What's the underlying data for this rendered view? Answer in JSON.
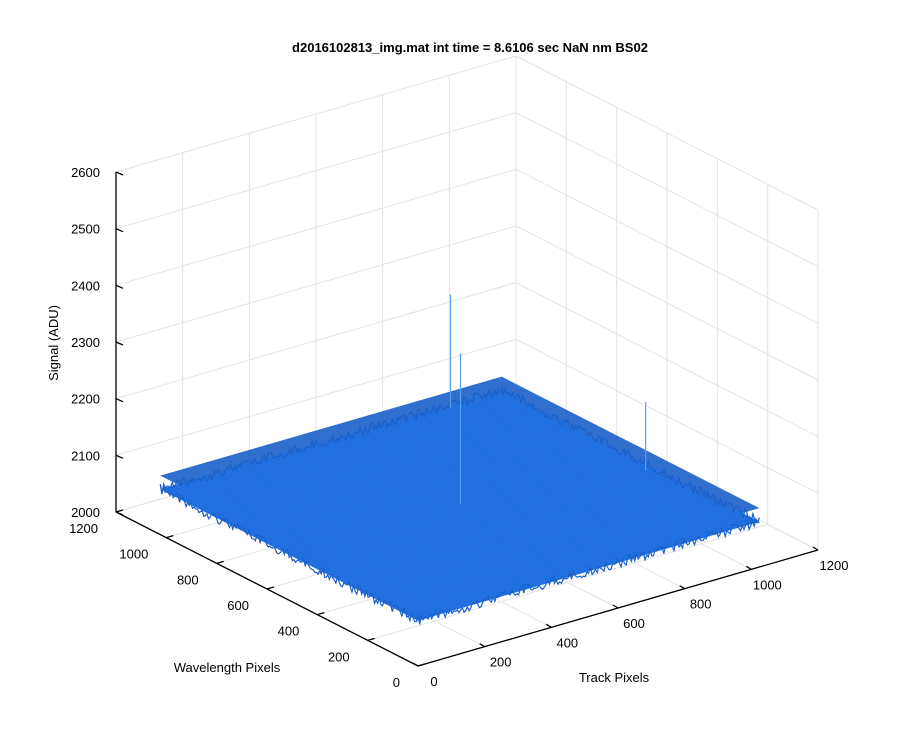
{
  "chart_data": {
    "type": "surface",
    "title": "d2016102813_img.mat int time = 8.6106 sec  NaN nm BS02",
    "xlabel": "Track Pixels",
    "ylabel": "Wavelength Pixels",
    "zlabel": "Signal (ADU)",
    "xlim": [
      0,
      1200
    ],
    "ylim": [
      0,
      1200
    ],
    "zlim": [
      2000,
      2600
    ],
    "x_ticks": [
      "0",
      "200",
      "400",
      "600",
      "800",
      "1000",
      "1200"
    ],
    "y_ticks": [
      "0",
      "200",
      "400",
      "600",
      "800",
      "1000",
      "1200"
    ],
    "z_ticks": [
      "2000",
      "2100",
      "2200",
      "2300",
      "2400",
      "2500",
      "2600"
    ],
    "grid": true,
    "surface": {
      "x_range": [
        0,
        1024
      ],
      "y_range": [
        0,
        1024
      ],
      "mean_signal": 2080,
      "noise_amplitude": 15,
      "color": "#1f6fe0",
      "edge_color": "#1a5fc8",
      "spikes": [
        {
          "x": 520,
          "y": 520,
          "z": 2345
        },
        {
          "x": 860,
          "y": 1010,
          "z": 2280
        },
        {
          "x": 1000,
          "y": 420,
          "z": 2200
        }
      ]
    }
  }
}
